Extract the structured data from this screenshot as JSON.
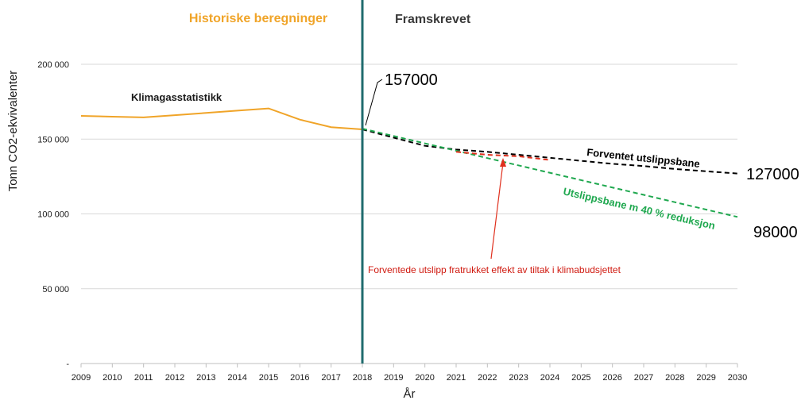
{
  "chart_data": {
    "type": "line",
    "xlabel": "År",
    "ylabel": "Tonn CO2-ekvivalenter",
    "xlim": [
      2009,
      2030
    ],
    "ylim": [
      0,
      200000
    ],
    "grid": "horizontal",
    "x_ticks": [
      "2009",
      "2010",
      "2011",
      "2012",
      "2013",
      "2014",
      "2015",
      "2016",
      "2017",
      "2018",
      "2019",
      "2020",
      "2021",
      "2022",
      "2023",
      "2024",
      "2025",
      "2026",
      "2027",
      "2028",
      "2029",
      "2030"
    ],
    "y_ticks": [
      {
        "value": 0,
        "label": "-"
      },
      {
        "value": 50000,
        "label": "50 000"
      },
      {
        "value": 100000,
        "label": "100 000"
      },
      {
        "value": 150000,
        "label": "150 000"
      },
      {
        "value": 200000,
        "label": "200 000"
      }
    ],
    "divider_year": 2018,
    "period_labels": {
      "historic": "Historiske beregninger",
      "projected": "Framskrevet"
    },
    "series": [
      {
        "name": "Klimagasstatistikk",
        "color": "#f0a428",
        "style": "solid",
        "x": [
          2009,
          2010,
          2011,
          2012,
          2013,
          2014,
          2015,
          2016,
          2017,
          2018
        ],
        "y": [
          165500,
          165000,
          164500,
          166000,
          167500,
          169000,
          170500,
          163000,
          158000,
          156500
        ]
      },
      {
        "name": "Forventet utslippsbane",
        "color": "#000000",
        "style": "dashed",
        "x": [
          2018,
          2019,
          2020,
          2021,
          2022,
          2023,
          2024,
          2025,
          2026,
          2027,
          2028,
          2029,
          2030
        ],
        "y": [
          156500,
          151000,
          145500,
          143000,
          141500,
          139500,
          137500,
          135500,
          133500,
          132000,
          130000,
          128500,
          127000
        ]
      },
      {
        "name": "Utslippsbane m 40 % reduksjon",
        "color": "#1fa84f",
        "style": "dashed",
        "x": [
          2018,
          2030
        ],
        "y": [
          157000,
          98000
        ]
      },
      {
        "name": "",
        "color": "#e0301e",
        "style": "dashed",
        "x": [
          2021,
          2022,
          2023,
          2024
        ],
        "y": [
          141500,
          139500,
          138500,
          136000
        ]
      }
    ],
    "annotations": {
      "start_value": "157000",
      "end_expected": "127000",
      "end_reduction": "98000",
      "red_note": "Forventede utslipp fratrukket effekt av tiltak i klimabudsjettet"
    }
  }
}
